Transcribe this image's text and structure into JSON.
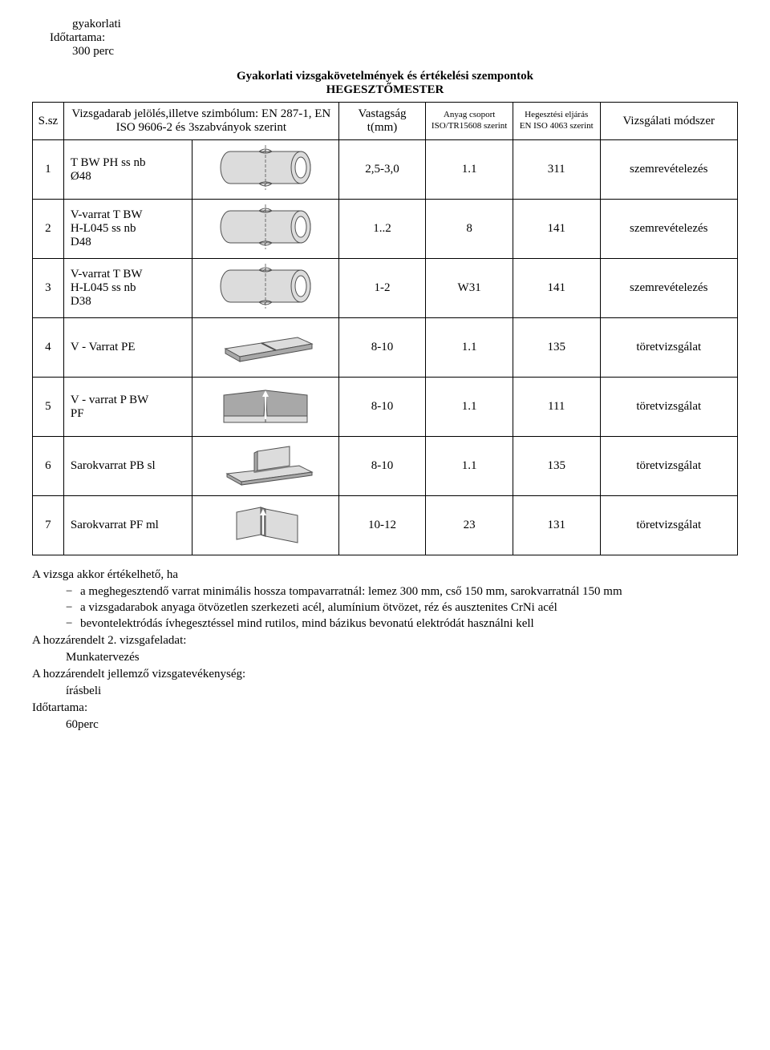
{
  "header": {
    "l1": "gyakorlati",
    "l2": "Időtartama:",
    "l3": "300 perc"
  },
  "title": "Gyakorlati vizsgakövetelmények és értékelési szempontok",
  "subtitle": "HEGESZTŐMESTER",
  "table": {
    "headers": {
      "num": "S.sz",
      "desc": "Vizsgadarab jelölés,illetve szimbólum: EN 287-1, EN ISO 9606-2 és 3szabványok szerint",
      "thick": "Vastagság t(mm)",
      "group": "Anyag csoport ISO/TR15608 szerint",
      "proc": "Hegesztési eljárás EN ISO 4063 szerint",
      "method": "Vizsgálati módszer"
    },
    "rows": [
      {
        "n": "1",
        "desc": "T BW PH ss nb\nØ48",
        "dtype": "pipe",
        "th": "2,5-3,0",
        "an": "1.1",
        "heg": "311",
        "viz": "szemrevételezés"
      },
      {
        "n": "2",
        "desc": "V-varrat T BW\nH-L045 ss nb\nD48",
        "dtype": "pipe",
        "th": "1..2",
        "an": "8",
        "heg": "141",
        "viz": "szemrevételezés"
      },
      {
        "n": "3",
        "desc": "V-varrat T BW\nH-L045 ss nb\nD38",
        "dtype": "pipe",
        "th": "1-2",
        "an": "W31",
        "heg": "141",
        "viz": "szemrevételezés"
      },
      {
        "n": "4",
        "desc": "V - Varrat PE",
        "dtype": "plate",
        "th": "8-10",
        "an": "1.1",
        "heg": "135",
        "viz": "töretvizsgálat"
      },
      {
        "n": "5",
        "desc": "V - varrat P BW\nPF",
        "dtype": "vee",
        "th": "8-10",
        "an": "1.1",
        "heg": "111",
        "viz": "töretvizsgálat"
      },
      {
        "n": "6",
        "desc": "Sarokvarrat PB sl",
        "dtype": "tee",
        "th": "8-10",
        "an": "1.1",
        "heg": "135",
        "viz": "töretvizsgálat"
      },
      {
        "n": "7",
        "desc": "Sarokvarrat PF ml",
        "dtype": "tee2",
        "th": "10-12",
        "an": "23",
        "heg": "131",
        "viz": "töretvizsgálat"
      }
    ]
  },
  "notes": {
    "intro": "A vizsga akkor értékelhető, ha",
    "bullets": [
      "a meghegesztendő varrat minimális hossza tompavarratnál: lemez 300 mm, cső 150 mm, sarokvarratnál 150 mm",
      "a vizsgadarabok anyaga ötvözetlen szerkezeti acél, alumínium ötvözet, réz és ausztenites CrNi acél",
      "bevontelektródás ívhegesztéssel mind rutilos, mind bázikus bevonatú elektródát használni kell"
    ],
    "p1": "A hozzárendelt 2. vizsgafeladat:",
    "p1s": "Munkatervezés",
    "p2": "A hozzárendelt jellemző vizsgatevékenység:",
    "p2s": "írásbeli",
    "p3": "Időtartama:",
    "p3s": "60perc"
  },
  "style": {
    "stroke": "#505050",
    "fill_light": "#dcdcdc",
    "fill_mid": "#a8a8a8",
    "fill_dark": "#808080"
  }
}
